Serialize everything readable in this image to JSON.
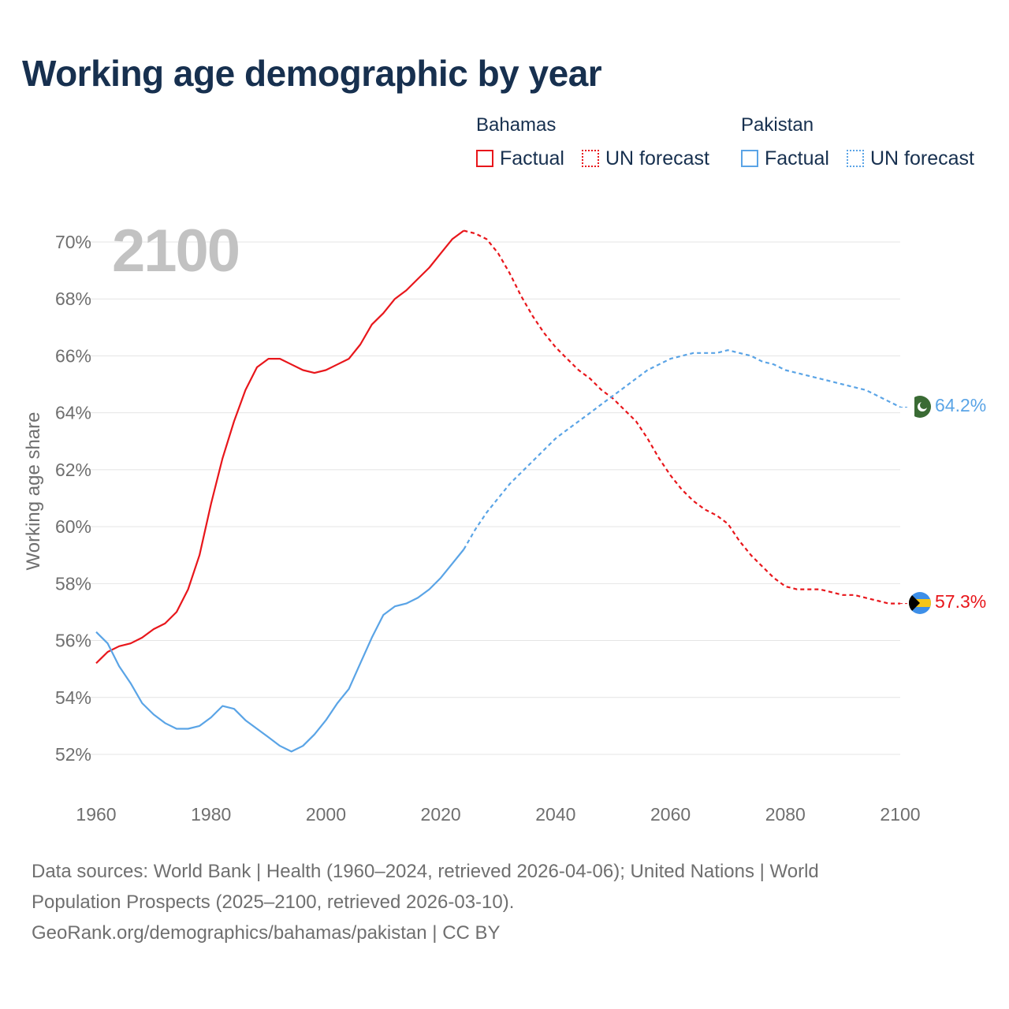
{
  "title": "Working age demographic by year",
  "legend": {
    "groups": [
      {
        "country": "Bahamas",
        "factual_label": "Factual",
        "forecast_label": "UN forecast",
        "color": "#e8161b"
      },
      {
        "country": "Pakistan",
        "factual_label": "Factual",
        "forecast_label": "UN forecast",
        "color": "#5aa4e6"
      }
    ]
  },
  "year_watermark": "2100",
  "end_labels": {
    "pakistan": "64.2%",
    "bahamas": "57.3%"
  },
  "footer": {
    "line1": "Data sources: World Bank | Health (1960–2024, retrieved 2026-04-06); United Nations | World",
    "line2": "Population Prospects (2025–2100, retrieved 2026-03-10).",
    "line3": "GeoRank.org/demographics/bahamas/pakistan | CC BY"
  },
  "chart_data": {
    "type": "line",
    "title": "Working age demographic by year",
    "xlabel": "",
    "ylabel": "Working age share",
    "xlim": [
      1960,
      2100
    ],
    "ylim": [
      51,
      71
    ],
    "x_ticks": [
      1960,
      1980,
      2000,
      2020,
      2040,
      2060,
      2080,
      2100
    ],
    "y_ticks": [
      52,
      54,
      56,
      58,
      60,
      62,
      64,
      66,
      68,
      70
    ],
    "y_tick_labels": [
      "52%",
      "54%",
      "56%",
      "58%",
      "60%",
      "62%",
      "64%",
      "66%",
      "68%",
      "70%"
    ],
    "grid": true,
    "factual_end_year": 2024,
    "series": [
      {
        "name": "Bahamas",
        "color": "#e8161b",
        "points": [
          [
            1960,
            55.2
          ],
          [
            1962,
            55.6
          ],
          [
            1964,
            55.8
          ],
          [
            1966,
            55.9
          ],
          [
            1968,
            56.1
          ],
          [
            1970,
            56.4
          ],
          [
            1972,
            56.6
          ],
          [
            1974,
            57.0
          ],
          [
            1976,
            57.8
          ],
          [
            1978,
            59.0
          ],
          [
            1980,
            60.8
          ],
          [
            1982,
            62.4
          ],
          [
            1984,
            63.7
          ],
          [
            1986,
            64.8
          ],
          [
            1988,
            65.6
          ],
          [
            1990,
            65.9
          ],
          [
            1992,
            65.9
          ],
          [
            1994,
            65.7
          ],
          [
            1996,
            65.5
          ],
          [
            1998,
            65.4
          ],
          [
            2000,
            65.5
          ],
          [
            2002,
            65.7
          ],
          [
            2004,
            65.9
          ],
          [
            2006,
            66.4
          ],
          [
            2008,
            67.1
          ],
          [
            2010,
            67.5
          ],
          [
            2012,
            68.0
          ],
          [
            2014,
            68.3
          ],
          [
            2016,
            68.7
          ],
          [
            2018,
            69.1
          ],
          [
            2020,
            69.6
          ],
          [
            2022,
            70.1
          ],
          [
            2024,
            70.4
          ],
          [
            2026,
            70.3
          ],
          [
            2028,
            70.1
          ],
          [
            2030,
            69.6
          ],
          [
            2032,
            68.9
          ],
          [
            2034,
            68.1
          ],
          [
            2036,
            67.4
          ],
          [
            2038,
            66.8
          ],
          [
            2040,
            66.3
          ],
          [
            2042,
            65.9
          ],
          [
            2044,
            65.5
          ],
          [
            2046,
            65.2
          ],
          [
            2048,
            64.8
          ],
          [
            2050,
            64.5
          ],
          [
            2052,
            64.1
          ],
          [
            2054,
            63.7
          ],
          [
            2056,
            63.1
          ],
          [
            2058,
            62.4
          ],
          [
            2060,
            61.8
          ],
          [
            2062,
            61.3
          ],
          [
            2064,
            60.9
          ],
          [
            2066,
            60.6
          ],
          [
            2068,
            60.4
          ],
          [
            2070,
            60.1
          ],
          [
            2072,
            59.5
          ],
          [
            2074,
            59.0
          ],
          [
            2076,
            58.6
          ],
          [
            2078,
            58.2
          ],
          [
            2080,
            57.9
          ],
          [
            2082,
            57.8
          ],
          [
            2084,
            57.8
          ],
          [
            2086,
            57.8
          ],
          [
            2088,
            57.7
          ],
          [
            2090,
            57.6
          ],
          [
            2092,
            57.6
          ],
          [
            2094,
            57.5
          ],
          [
            2096,
            57.4
          ],
          [
            2098,
            57.3
          ],
          [
            2100,
            57.3
          ]
        ]
      },
      {
        "name": "Pakistan",
        "color": "#5aa4e6",
        "points": [
          [
            1960,
            56.3
          ],
          [
            1962,
            55.9
          ],
          [
            1964,
            55.1
          ],
          [
            1966,
            54.5
          ],
          [
            1968,
            53.8
          ],
          [
            1970,
            53.4
          ],
          [
            1972,
            53.1
          ],
          [
            1974,
            52.9
          ],
          [
            1976,
            52.9
          ],
          [
            1978,
            53.0
          ],
          [
            1980,
            53.3
          ],
          [
            1982,
            53.7
          ],
          [
            1984,
            53.6
          ],
          [
            1986,
            53.2
          ],
          [
            1988,
            52.9
          ],
          [
            1990,
            52.6
          ],
          [
            1992,
            52.3
          ],
          [
            1994,
            52.1
          ],
          [
            1996,
            52.3
          ],
          [
            1998,
            52.7
          ],
          [
            2000,
            53.2
          ],
          [
            2002,
            53.8
          ],
          [
            2004,
            54.3
          ],
          [
            2006,
            55.2
          ],
          [
            2008,
            56.1
          ],
          [
            2010,
            56.9
          ],
          [
            2012,
            57.2
          ],
          [
            2014,
            57.3
          ],
          [
            2016,
            57.5
          ],
          [
            2018,
            57.8
          ],
          [
            2020,
            58.2
          ],
          [
            2022,
            58.7
          ],
          [
            2024,
            59.2
          ],
          [
            2026,
            59.9
          ],
          [
            2028,
            60.5
          ],
          [
            2030,
            61.0
          ],
          [
            2032,
            61.5
          ],
          [
            2034,
            61.9
          ],
          [
            2036,
            62.3
          ],
          [
            2038,
            62.7
          ],
          [
            2040,
            63.1
          ],
          [
            2042,
            63.4
          ],
          [
            2044,
            63.7
          ],
          [
            2046,
            64.0
          ],
          [
            2048,
            64.3
          ],
          [
            2050,
            64.6
          ],
          [
            2052,
            64.9
          ],
          [
            2054,
            65.2
          ],
          [
            2056,
            65.5
          ],
          [
            2058,
            65.7
          ],
          [
            2060,
            65.9
          ],
          [
            2062,
            66.0
          ],
          [
            2064,
            66.1
          ],
          [
            2066,
            66.1
          ],
          [
            2068,
            66.1
          ],
          [
            2070,
            66.2
          ],
          [
            2072,
            66.1
          ],
          [
            2074,
            66.0
          ],
          [
            2076,
            65.8
          ],
          [
            2078,
            65.7
          ],
          [
            2080,
            65.5
          ],
          [
            2082,
            65.4
          ],
          [
            2084,
            65.3
          ],
          [
            2086,
            65.2
          ],
          [
            2088,
            65.1
          ],
          [
            2090,
            65.0
          ],
          [
            2092,
            64.9
          ],
          [
            2094,
            64.8
          ],
          [
            2096,
            64.6
          ],
          [
            2098,
            64.4
          ],
          [
            2100,
            64.2
          ]
        ]
      }
    ]
  }
}
